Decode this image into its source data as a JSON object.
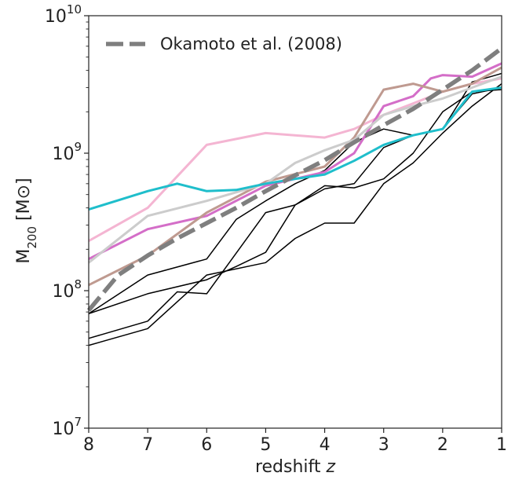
{
  "chart_data": {
    "type": "line",
    "title": "",
    "xlabel": "redshift z",
    "xlabel_main": "redshift ",
    "xlabel_var": "z",
    "ylabel": "M200 [M⊙]",
    "ylabel_main": "M",
    "ylabel_sub": "200",
    "ylabel_unit": " [M⊙]",
    "x_scale": "linear",
    "x_reversed": true,
    "xlim": [
      8,
      1
    ],
    "xticks": [
      8,
      7,
      6,
      5,
      4,
      3,
      2,
      1
    ],
    "xtick_labels": [
      "8",
      "7",
      "6",
      "5",
      "4",
      "3",
      "2",
      "1"
    ],
    "y_scale": "log",
    "ylim": [
      10000000.0,
      10000000000.0
    ],
    "yticks": [
      {
        "base": "10",
        "exp": "7",
        "value": 10000000.0
      },
      {
        "base": "10",
        "exp": "8",
        "value": 100000000.0
      },
      {
        "base": "10",
        "exp": "9",
        "value": 1000000000.0
      },
      {
        "base": "10",
        "exp": "10",
        "value": 10000000000.0
      }
    ],
    "grid": false,
    "legend": {
      "position": "top-left",
      "entries": [
        {
          "label": "Okamoto et al. (2008)",
          "color": "#7f7f7f",
          "style": "dashed"
        }
      ]
    },
    "series": [
      {
        "color": "#000000",
        "width": 1.5,
        "x": [
          8,
          7,
          6,
          5.5,
          5,
          4.5,
          4,
          3.5,
          3,
          2.5,
          2,
          1.5,
          1
        ],
        "y": [
          68000000.0,
          130000000.0,
          170000000.0,
          330000000.0,
          450000000.0,
          600000000.0,
          750000000.0,
          1200000000.0,
          1500000000.0,
          1350000000.0,
          1500000000.0,
          3300000000.0,
          3800000000.0
        ]
      },
      {
        "color": "#000000",
        "width": 1.5,
        "x": [
          8,
          7,
          6,
          5.5,
          5,
          4.5,
          4,
          3.5,
          3,
          2.5,
          2,
          1.5,
          1
        ],
        "y": [
          68000000.0,
          95000000.0,
          120000000.0,
          150000000.0,
          190000000.0,
          420000000.0,
          550000000.0,
          600000000.0,
          1100000000.0,
          1350000000.0,
          1500000000.0,
          2700000000.0,
          3000000000.0
        ]
      },
      {
        "color": "#000000",
        "width": 1.5,
        "x": [
          8,
          7,
          6.5,
          6,
          5,
          4.5,
          4,
          3.5,
          3,
          2.5,
          2,
          1.5,
          1
        ],
        "y": [
          45000000.0,
          60000000.0,
          98000000.0,
          95000000.0,
          370000000.0,
          420000000.0,
          580000000.0,
          560000000.0,
          650000000.0,
          1000000000.0,
          2000000000.0,
          2800000000.0,
          2900000000.0
        ]
      },
      {
        "color": "#000000",
        "width": 1.5,
        "x": [
          8,
          7,
          6,
          5,
          4.5,
          4,
          3.5,
          3,
          2.5,
          2,
          1.5,
          1
        ],
        "y": [
          40000000.0,
          53000000.0,
          130000000.0,
          160000000.0,
          240000000.0,
          310000000.0,
          310000000.0,
          600000000.0,
          850000000.0,
          1400000000.0,
          2200000000.0,
          3200000000.0
        ]
      },
      {
        "color": "#f4b5d2",
        "width": 3,
        "x": [
          8,
          7,
          6,
          5,
          4,
          3.5,
          3,
          2.5,
          2,
          1.5,
          1
        ],
        "y": [
          230000000.0,
          400000000.0,
          1150000000.0,
          1400000000.0,
          1300000000.0,
          1500000000.0,
          1900000000.0,
          2300000000.0,
          2800000000.0,
          3200000000.0,
          3500000000.0
        ]
      },
      {
        "color": "#d46ec8",
        "width": 3,
        "x": [
          8,
          7,
          6,
          5,
          4,
          3.5,
          3,
          2.5,
          2.2,
          2,
          1.5,
          1
        ],
        "y": [
          170000000.0,
          280000000.0,
          350000000.0,
          580000000.0,
          730000000.0,
          1000000000.0,
          2200000000.0,
          2600000000.0,
          3500000000.0,
          3700000000.0,
          3600000000.0,
          4500000000.0
        ]
      },
      {
        "color": "#bf9a90",
        "width": 3,
        "x": [
          8,
          7,
          6,
          5,
          4,
          3.5,
          3,
          2.5,
          2,
          1.5,
          1
        ],
        "y": [
          110000000.0,
          180000000.0,
          370000000.0,
          620000000.0,
          800000000.0,
          1300000000.0,
          2900000000.0,
          3200000000.0,
          2800000000.0,
          3200000000.0,
          4200000000.0
        ]
      },
      {
        "color": "#cccccc",
        "width": 3,
        "x": [
          8,
          7,
          6,
          5,
          4.5,
          4,
          3.5,
          3,
          2.5,
          2,
          1.5,
          1
        ],
        "y": [
          160000000.0,
          350000000.0,
          450000000.0,
          600000000.0,
          850000000.0,
          1050000000.0,
          1250000000.0,
          1900000000.0,
          2200000000.0,
          2500000000.0,
          3000000000.0,
          3600000000.0
        ]
      },
      {
        "color": "#1fbecb",
        "width": 3,
        "x": [
          8,
          7,
          6.5,
          6,
          5.5,
          5,
          4.5,
          4,
          3.5,
          3,
          2.5,
          2,
          1.5,
          1
        ],
        "y": [
          390000000.0,
          530000000.0,
          600000000.0,
          530000000.0,
          540000000.0,
          600000000.0,
          650000000.0,
          700000000.0,
          880000000.0,
          1150000000.0,
          1350000000.0,
          1500000000.0,
          2800000000.0,
          3000000000.0
        ]
      },
      {
        "name": "Okamoto et al. (2008)",
        "color": "#7f7f7f",
        "width": 5.5,
        "dashed": true,
        "x": [
          8,
          7.5,
          7,
          6.5,
          6,
          5.5,
          5,
          4.5,
          4,
          3.5,
          3,
          2.5,
          2,
          1.5,
          1
        ],
        "y": [
          72000000.0,
          130000000.0,
          180000000.0,
          240000000.0,
          310000000.0,
          400000000.0,
          530000000.0,
          690000000.0,
          890000000.0,
          1200000000.0,
          1600000000.0,
          2100000000.0,
          2900000000.0,
          4000000000.0,
          5800000000.0
        ]
      }
    ]
  }
}
